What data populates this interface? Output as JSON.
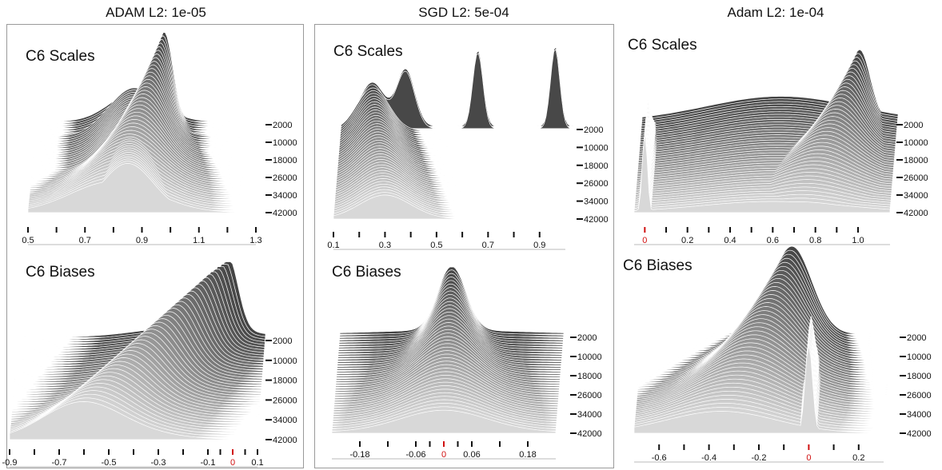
{
  "columns": [
    {
      "title": "ADAM L2: 1e-05"
    },
    {
      "title": "SGD L2: 5e-04"
    },
    {
      "title": "Adam L2: 1e-04"
    }
  ],
  "colors": {
    "dark": "#444444",
    "light": "#d8d8d8",
    "zero_tick": "#d01010",
    "ridge_line": "#ffffff"
  },
  "chart_data": [
    {
      "type": "area",
      "title": "C6 Scales",
      "column": "ADAM L2: 1e-05",
      "x_ticks": [
        "0.5",
        "0.7",
        "0.9",
        "1.1",
        "1.3"
      ],
      "xlim": [
        0.5,
        1.3
      ],
      "zero_tick": null,
      "steps": [
        "2000",
        "10000",
        "18000",
        "26000",
        "34000",
        "42000"
      ],
      "series": [
        {
          "step": 2000,
          "x": [
            0.88,
            0.93,
            0.95,
            0.97,
            1.0,
            1.02
          ],
          "y": [
            0.05,
            0.3,
            1.0,
            0.4,
            0.15,
            0.05
          ]
        },
        {
          "step": 42000,
          "x": [
            0.55,
            0.7,
            0.8,
            0.9,
            1.0,
            1.05
          ],
          "y": [
            0.05,
            0.25,
            0.35,
            0.3,
            0.25,
            0.05
          ]
        }
      ]
    },
    {
      "type": "area",
      "title": "C6 Biases",
      "column": "ADAM L2: 1e-05",
      "x_ticks": [
        "-0.9",
        "-0.7",
        "-0.5",
        "-0.3",
        "-0.1",
        "0",
        "0.1"
      ],
      "xlim": [
        -0.9,
        0.1
      ],
      "zero_tick": "0",
      "steps": [
        "2000",
        "10000",
        "18000",
        "26000",
        "34000",
        "42000"
      ],
      "series": [
        {
          "step": 2000,
          "x": [
            -0.2,
            -0.1,
            -0.05,
            0.0,
            0.03
          ],
          "y": [
            0.1,
            0.3,
            1.0,
            0.3,
            0.05
          ]
        },
        {
          "step": 42000,
          "x": [
            -0.85,
            -0.7,
            -0.6,
            -0.4,
            -0.2
          ],
          "y": [
            0.05,
            0.35,
            0.4,
            0.25,
            0.05
          ]
        }
      ]
    },
    {
      "type": "area",
      "title": "C6 Scales",
      "column": "SGD L2: 5e-04",
      "x_ticks": [
        "0.1",
        "0.3",
        "0.5",
        "0.7",
        "0.9"
      ],
      "xlim": [
        0.1,
        1.0
      ],
      "zero_tick": null,
      "steps": [
        "2000",
        "10000",
        "18000",
        "26000",
        "34000",
        "42000"
      ],
      "series": [
        {
          "step": 2000,
          "x": [
            0.15,
            0.2,
            0.3,
            0.35,
            0.4,
            0.6,
            0.62,
            0.66,
            0.9,
            0.93
          ],
          "y": [
            0.3,
            0.55,
            0.4,
            0.7,
            0.2,
            0.1,
            0.95,
            0.3,
            0.5,
            1.0
          ]
        },
        {
          "step": 42000,
          "x": [
            0.12,
            0.2,
            0.3,
            0.4,
            0.5
          ],
          "y": [
            0.05,
            0.25,
            0.3,
            0.2,
            0.05
          ]
        }
      ]
    },
    {
      "type": "area",
      "title": "C6 Biases",
      "column": "SGD L2: 5e-04",
      "x_ticks": [
        "-0.18",
        "-0.06",
        "0",
        "0.06",
        "0.18"
      ],
      "xlim": [
        -0.24,
        0.24
      ],
      "zero_tick": "0",
      "steps": [
        "2000",
        "10000",
        "18000",
        "26000",
        "34000",
        "42000"
      ],
      "series": [
        {
          "step": 2000,
          "x": [
            -0.08,
            -0.03,
            0.0,
            0.03,
            0.08
          ],
          "y": [
            0.1,
            0.3,
            1.0,
            0.3,
            0.1
          ]
        },
        {
          "step": 42000,
          "x": [
            -0.18,
            -0.06,
            0.0,
            0.06,
            0.18
          ],
          "y": [
            0.05,
            0.2,
            0.25,
            0.2,
            0.05
          ]
        }
      ]
    },
    {
      "type": "area",
      "title": "C6 Scales",
      "column": "Adam L2: 1e-04",
      "x_ticks": [
        "0",
        "0.2",
        "0.4",
        "0.6",
        "0.8",
        "1.0"
      ],
      "xlim": [
        -0.05,
        1.15
      ],
      "zero_tick": "0",
      "steps": [
        "2000",
        "10000",
        "18000",
        "26000",
        "34000",
        "42000"
      ],
      "series": [
        {
          "step": 2000,
          "x": [
            0.8,
            0.9,
            0.95,
            1.0,
            1.05
          ],
          "y": [
            0.4,
            0.6,
            1.0,
            0.5,
            0.1
          ]
        },
        {
          "step": 42000,
          "x": [
            0.0,
            0.01,
            0.4,
            0.6,
            0.8
          ],
          "y": [
            1.0,
            0.2,
            0.1,
            0.15,
            0.05
          ]
        }
      ]
    },
    {
      "type": "area",
      "title": "C6 Biases",
      "column": "Adam L2: 1e-04",
      "x_ticks": [
        "-0.6",
        "-0.4",
        "-0.2",
        "0",
        "0.2"
      ],
      "xlim": [
        -0.7,
        0.3
      ],
      "zero_tick": "0",
      "steps": [
        "2000",
        "10000",
        "18000",
        "26000",
        "34000",
        "42000"
      ],
      "series": [
        {
          "step": 2000,
          "x": [
            -0.3,
            -0.1,
            -0.02,
            0.0,
            0.02
          ],
          "y": [
            0.2,
            0.6,
            1.0,
            0.4,
            0.05
          ]
        },
        {
          "step": 42000,
          "x": [
            -0.6,
            -0.3,
            -0.02,
            0.0,
            0.02
          ],
          "y": [
            0.05,
            0.15,
            0.3,
            1.0,
            0.05
          ]
        }
      ]
    }
  ]
}
